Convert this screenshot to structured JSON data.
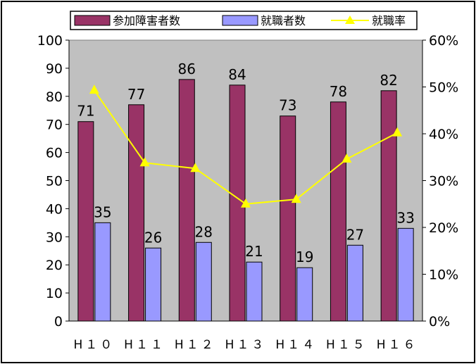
{
  "chart_data": {
    "type": "bar",
    "categories": [
      "H10",
      "H11",
      "H12",
      "H13",
      "H14",
      "H15",
      "H16"
    ],
    "category_labels": [
      "H１０",
      "H１１",
      "H１２",
      "H１３",
      "H１４",
      "H１５",
      "H１６"
    ],
    "series": [
      {
        "name": "参加障害者数",
        "type": "bar",
        "axis": "left",
        "color": "#993366",
        "values": [
          71,
          77,
          86,
          84,
          73,
          78,
          82
        ]
      },
      {
        "name": "就職者数",
        "type": "bar",
        "axis": "left",
        "color": "#9999ff",
        "values": [
          35,
          26,
          28,
          21,
          19,
          27,
          33
        ]
      },
      {
        "name": "就職率",
        "type": "line",
        "axis": "right",
        "color": "#ffff00",
        "marker": "triangle",
        "values": [
          0.493,
          0.338,
          0.326,
          0.25,
          0.26,
          0.346,
          0.402
        ]
      }
    ],
    "y_left": {
      "min": 0,
      "max": 100,
      "step": 10,
      "ticks": [
        "0",
        "10",
        "20",
        "30",
        "40",
        "50",
        "60",
        "70",
        "80",
        "90",
        "100"
      ]
    },
    "y_right": {
      "min": 0,
      "max": 0.6,
      "step": 0.1,
      "ticks": [
        "0%",
        "10%",
        "20%",
        "30%",
        "40%",
        "50%",
        "60%"
      ]
    },
    "title": "",
    "xlabel": "",
    "ylabel": "",
    "grid": false,
    "plot_background": "#c0c0c0",
    "legend_position": "top-center"
  }
}
